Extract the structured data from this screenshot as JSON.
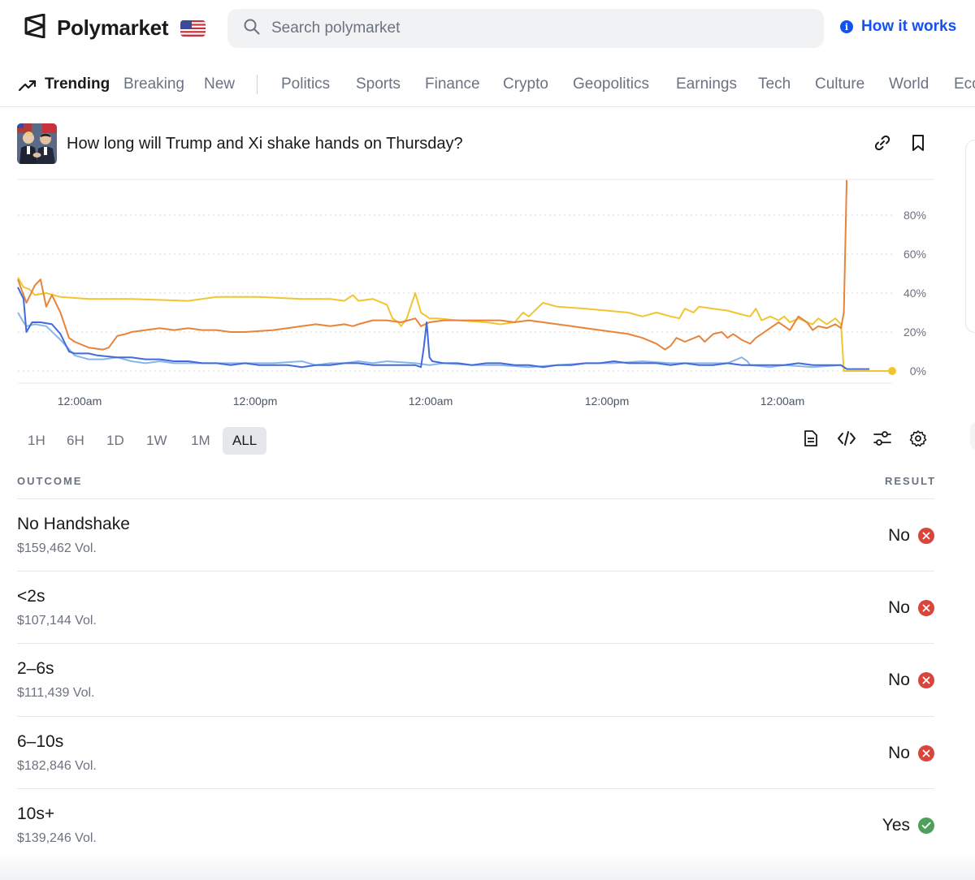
{
  "header": {
    "brand": "Polymarket",
    "search_placeholder": "Search polymarket",
    "how_it_works": "How it works"
  },
  "nav": {
    "items": [
      "Trending",
      "Breaking",
      "New",
      "Politics",
      "Sports",
      "Finance",
      "Crypto",
      "Geopolitics",
      "Earnings",
      "Tech",
      "Culture",
      "World",
      "Eco"
    ]
  },
  "market": {
    "title": "How long will Trump and Xi shake hands on Thursday?"
  },
  "chart_data": {
    "type": "line",
    "x_ticks": [
      "12:00am",
      "12:00pm",
      "12:00am",
      "12:00pm",
      "12:00am"
    ],
    "y_ticks": [
      "80%",
      "60%",
      "40%",
      "20%",
      "0%"
    ],
    "ylim": [
      0,
      100
    ],
    "grid": true,
    "colors": [
      "#f0c52f",
      "#e8833a",
      "#3f6bdd",
      "#8ab4ec"
    ],
    "series": [
      {
        "color": "#f0c52f",
        "points": [
          [
            0,
            48
          ],
          [
            2,
            43
          ],
          [
            4,
            42
          ],
          [
            6,
            39
          ],
          [
            10,
            40
          ],
          [
            15,
            38
          ],
          [
            25,
            37
          ],
          [
            40,
            37
          ],
          [
            60,
            36
          ],
          [
            70,
            38
          ],
          [
            85,
            38
          ],
          [
            100,
            37
          ],
          [
            110,
            37
          ],
          [
            115,
            36
          ],
          [
            118,
            39
          ],
          [
            120,
            36
          ],
          [
            125,
            37
          ],
          [
            130,
            34
          ],
          [
            132,
            27
          ],
          [
            134,
            25
          ],
          [
            135,
            23
          ],
          [
            137,
            27
          ],
          [
            140,
            40
          ],
          [
            142,
            30
          ],
          [
            145,
            27
          ],
          [
            148,
            27
          ],
          [
            155,
            26
          ],
          [
            165,
            25
          ],
          [
            170,
            24
          ],
          [
            175,
            25
          ],
          [
            178,
            30
          ],
          [
            180,
            28
          ],
          [
            185,
            35
          ],
          [
            190,
            33
          ],
          [
            200,
            32
          ],
          [
            215,
            30
          ],
          [
            220,
            28
          ],
          [
            225,
            30
          ],
          [
            230,
            28
          ],
          [
            233,
            27
          ],
          [
            235,
            32
          ],
          [
            238,
            30
          ],
          [
            240,
            33
          ],
          [
            245,
            32
          ],
          [
            250,
            31
          ],
          [
            255,
            29
          ],
          [
            258,
            28
          ],
          [
            260,
            32
          ],
          [
            262,
            26
          ],
          [
            265,
            28
          ],
          [
            268,
            26
          ],
          [
            270,
            28
          ],
          [
            272,
            25
          ],
          [
            275,
            27
          ],
          [
            278,
            25
          ],
          [
            280,
            24
          ],
          [
            282,
            27
          ],
          [
            285,
            24
          ],
          [
            288,
            27
          ],
          [
            290,
            24
          ],
          [
            291,
            0
          ],
          [
            292,
            0
          ],
          [
            300,
            0
          ],
          [
            308,
            0
          ]
        ]
      },
      {
        "color": "#e8833a",
        "points": [
          [
            0,
            47
          ],
          [
            3,
            35
          ],
          [
            6,
            44
          ],
          [
            8,
            47
          ],
          [
            10,
            33
          ],
          [
            12,
            39
          ],
          [
            15,
            30
          ],
          [
            18,
            17
          ],
          [
            20,
            15
          ],
          [
            25,
            12
          ],
          [
            30,
            11
          ],
          [
            32,
            12
          ],
          [
            35,
            18
          ],
          [
            38,
            19
          ],
          [
            40,
            20
          ],
          [
            45,
            21
          ],
          [
            50,
            22
          ],
          [
            55,
            21
          ],
          [
            60,
            22
          ],
          [
            65,
            21
          ],
          [
            70,
            21
          ],
          [
            75,
            20
          ],
          [
            80,
            20
          ],
          [
            90,
            21
          ],
          [
            95,
            22
          ],
          [
            100,
            23
          ],
          [
            105,
            24
          ],
          [
            110,
            23
          ],
          [
            115,
            24
          ],
          [
            118,
            23
          ],
          [
            120,
            24
          ],
          [
            125,
            26
          ],
          [
            130,
            26
          ],
          [
            135,
            25
          ],
          [
            140,
            27
          ],
          [
            142,
            23
          ],
          [
            145,
            25
          ],
          [
            150,
            26
          ],
          [
            155,
            26
          ],
          [
            160,
            26
          ],
          [
            165,
            26
          ],
          [
            170,
            26
          ],
          [
            175,
            25
          ],
          [
            180,
            26
          ],
          [
            185,
            25
          ],
          [
            190,
            24
          ],
          [
            195,
            23
          ],
          [
            200,
            22
          ],
          [
            205,
            21
          ],
          [
            210,
            20
          ],
          [
            215,
            19
          ],
          [
            220,
            17
          ],
          [
            225,
            14
          ],
          [
            228,
            11
          ],
          [
            230,
            13
          ],
          [
            232,
            17
          ],
          [
            235,
            15
          ],
          [
            240,
            18
          ],
          [
            242,
            15
          ],
          [
            245,
            19
          ],
          [
            248,
            20
          ],
          [
            250,
            17
          ],
          [
            252,
            19
          ],
          [
            255,
            16
          ],
          [
            258,
            14
          ],
          [
            260,
            17
          ],
          [
            262,
            19
          ],
          [
            265,
            22
          ],
          [
            268,
            25
          ],
          [
            270,
            23
          ],
          [
            272,
            21
          ],
          [
            275,
            28
          ],
          [
            278,
            25
          ],
          [
            280,
            21
          ],
          [
            282,
            23
          ],
          [
            285,
            22
          ],
          [
            288,
            24
          ],
          [
            290,
            22
          ],
          [
            291,
            30
          ],
          [
            292,
            98
          ]
        ]
      },
      {
        "color": "#3f6bdd",
        "points": [
          [
            0,
            43
          ],
          [
            2,
            37
          ],
          [
            3,
            20
          ],
          [
            5,
            25
          ],
          [
            8,
            25
          ],
          [
            12,
            24
          ],
          [
            15,
            19
          ],
          [
            18,
            10
          ],
          [
            20,
            9
          ],
          [
            25,
            9
          ],
          [
            28,
            8
          ],
          [
            35,
            7
          ],
          [
            40,
            7
          ],
          [
            45,
            6
          ],
          [
            50,
            6
          ],
          [
            55,
            5
          ],
          [
            60,
            5
          ],
          [
            65,
            4
          ],
          [
            70,
            4
          ],
          [
            75,
            3
          ],
          [
            80,
            4
          ],
          [
            85,
            3
          ],
          [
            90,
            3
          ],
          [
            95,
            3
          ],
          [
            100,
            2
          ],
          [
            105,
            3
          ],
          [
            110,
            3
          ],
          [
            115,
            4
          ],
          [
            120,
            4
          ],
          [
            125,
            3
          ],
          [
            130,
            3
          ],
          [
            135,
            3
          ],
          [
            140,
            3
          ],
          [
            142,
            2
          ],
          [
            143,
            12
          ],
          [
            144,
            25
          ],
          [
            145,
            7
          ],
          [
            146,
            5
          ],
          [
            150,
            4
          ],
          [
            155,
            4
          ],
          [
            160,
            3
          ],
          [
            165,
            4
          ],
          [
            170,
            4
          ],
          [
            175,
            3
          ],
          [
            180,
            3
          ],
          [
            185,
            2
          ],
          [
            190,
            3
          ],
          [
            195,
            3
          ],
          [
            200,
            4
          ],
          [
            205,
            4
          ],
          [
            210,
            5
          ],
          [
            215,
            4
          ],
          [
            220,
            4
          ],
          [
            225,
            4
          ],
          [
            230,
            3
          ],
          [
            235,
            4
          ],
          [
            240,
            3
          ],
          [
            245,
            3
          ],
          [
            250,
            4
          ],
          [
            255,
            3
          ],
          [
            260,
            3
          ],
          [
            265,
            3
          ],
          [
            270,
            3
          ],
          [
            275,
            4
          ],
          [
            280,
            3
          ],
          [
            285,
            3
          ],
          [
            290,
            3
          ],
          [
            292,
            1
          ],
          [
            295,
            1
          ],
          [
            300,
            1
          ]
        ]
      },
      {
        "color": "#8ab4ec",
        "points": [
          [
            0,
            30
          ],
          [
            2,
            25
          ],
          [
            3,
            23
          ],
          [
            6,
            24
          ],
          [
            10,
            23
          ],
          [
            15,
            16
          ],
          [
            20,
            8
          ],
          [
            25,
            6
          ],
          [
            30,
            6
          ],
          [
            35,
            7
          ],
          [
            40,
            5
          ],
          [
            45,
            4
          ],
          [
            50,
            5
          ],
          [
            55,
            4
          ],
          [
            60,
            4
          ],
          [
            70,
            4
          ],
          [
            80,
            4
          ],
          [
            90,
            4
          ],
          [
            100,
            5
          ],
          [
            105,
            3
          ],
          [
            110,
            4
          ],
          [
            115,
            4
          ],
          [
            120,
            5
          ],
          [
            125,
            4
          ],
          [
            130,
            5
          ],
          [
            140,
            4
          ],
          [
            145,
            3
          ],
          [
            150,
            4
          ],
          [
            160,
            3
          ],
          [
            170,
            3
          ],
          [
            180,
            2
          ],
          [
            190,
            3
          ],
          [
            200,
            4
          ],
          [
            210,
            4
          ],
          [
            220,
            5
          ],
          [
            230,
            4
          ],
          [
            240,
            4
          ],
          [
            250,
            4
          ],
          [
            255,
            7
          ],
          [
            257,
            5
          ],
          [
            258,
            3
          ],
          [
            265,
            2
          ],
          [
            270,
            3
          ],
          [
            280,
            2
          ],
          [
            290,
            3
          ],
          [
            292,
            1
          ]
        ]
      }
    ]
  },
  "ranges": [
    "1H",
    "6H",
    "1D",
    "1W",
    "1M",
    "ALL"
  ],
  "table": {
    "col_outcome": "OUTCOME",
    "col_result": "RESULT",
    "rows": [
      {
        "name": "No Handshake",
        "vol": "$159,462 Vol.",
        "result": "No",
        "status": "no"
      },
      {
        "name": "<2s",
        "vol": "$107,144 Vol.",
        "result": "No",
        "status": "no"
      },
      {
        "name": "2–6s",
        "vol": "$111,439 Vol.",
        "result": "No",
        "status": "no"
      },
      {
        "name": "6–10s",
        "vol": "$182,846 Vol.",
        "result": "No",
        "status": "no"
      },
      {
        "name": "10s+",
        "vol": "$139,246 Vol.",
        "result": "Yes",
        "status": "yes"
      }
    ]
  }
}
